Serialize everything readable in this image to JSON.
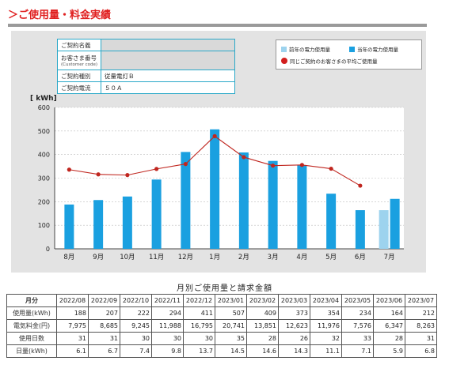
{
  "header": {
    "title": "＞ご使用量・料金実績"
  },
  "contract": {
    "rows": [
      {
        "label": "ご契約名義",
        "sub": "",
        "value": ""
      },
      {
        "label": "お客さま番号",
        "sub": "(Customer code)",
        "value": ""
      },
      {
        "label": "ご契約種別",
        "sub": "",
        "value": "従量電灯Ｂ"
      },
      {
        "label": "ご契約電流",
        "sub": "",
        "value": "５０Ａ"
      }
    ]
  },
  "legend": {
    "prev_year": "前年の電力使用量",
    "this_year": "当年の電力使用量",
    "avg": "同じご契約のお客さまの平均ご使用量"
  },
  "colors": {
    "this_year": "#1aa0e0",
    "prev_year": "#9dd3ee",
    "avg": "#c0261f",
    "header": "#e02020"
  },
  "chart_data": {
    "type": "bar",
    "unit_label": "[ kWh]",
    "categories": [
      "8月",
      "9月",
      "10月",
      "11月",
      "12月",
      "1月",
      "2月",
      "3月",
      "4月",
      "5月",
      "6月",
      "7月"
    ],
    "series": [
      {
        "name": "当年の電力使用量",
        "values": [
          188,
          207,
          222,
          294,
          411,
          507,
          409,
          373,
          354,
          234,
          164,
          212
        ]
      },
      {
        "name": "前年の電力使用量",
        "values": [
          null,
          null,
          null,
          null,
          null,
          null,
          null,
          null,
          null,
          null,
          null,
          164
        ]
      },
      {
        "name": "同じご契約のお客さまの平均ご使用量",
        "type": "line",
        "values": [
          336,
          316,
          313,
          339,
          360,
          478,
          389,
          353,
          356,
          340,
          268,
          null
        ]
      }
    ],
    "ylim": [
      0,
      600
    ],
    "yticks": [
      0,
      100,
      200,
      300,
      400,
      500,
      600
    ]
  },
  "table": {
    "title": "月別ご使用量と請求金額",
    "header_label": "月分",
    "months": [
      "2022/08",
      "2022/09",
      "2022/10",
      "2022/11",
      "2022/12",
      "2023/01",
      "2023/02",
      "2023/03",
      "2023/04",
      "2023/05",
      "2023/06",
      "2023/07"
    ],
    "rows": [
      {
        "label": "使用量(kWh)",
        "values": [
          "188",
          "207",
          "222",
          "294",
          "411",
          "507",
          "409",
          "373",
          "354",
          "234",
          "164",
          "212"
        ]
      },
      {
        "label": "電気料金(円)",
        "values": [
          "7,975",
          "8,685",
          "9,245",
          "11,988",
          "16,795",
          "20,741",
          "13,851",
          "12,623",
          "11,976",
          "7,576",
          "6,347",
          "8,263"
        ]
      },
      {
        "label": "使用日数",
        "values": [
          "31",
          "31",
          "30",
          "30",
          "30",
          "35",
          "28",
          "26",
          "32",
          "33",
          "28",
          "31"
        ]
      },
      {
        "label": "日量(kWh)",
        "values": [
          "6.1",
          "6.7",
          "7.4",
          "9.8",
          "13.7",
          "14.5",
          "14.6",
          "14.3",
          "11.1",
          "7.1",
          "5.9",
          "6.8"
        ]
      }
    ]
  }
}
